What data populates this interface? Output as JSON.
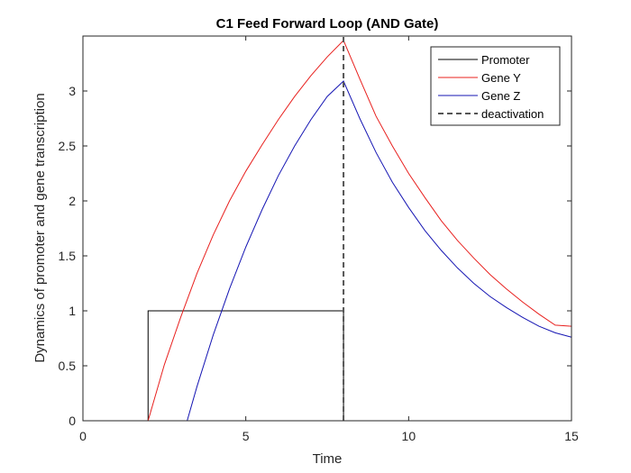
{
  "chart_data": {
    "type": "line",
    "title": "C1 Feed Forward Loop (AND Gate)",
    "xlabel": "Time",
    "ylabel": "Dynamics of promoter and gene transcription",
    "xlim": [
      0,
      15
    ],
    "ylim": [
      0,
      3.5
    ],
    "xticks": [
      0,
      5,
      10,
      15
    ],
    "xtick_labels": [
      "0",
      "5",
      "10",
      "15"
    ],
    "yticks": [
      0,
      0.5,
      1,
      1.5,
      2,
      2.5,
      3
    ],
    "ytick_labels": [
      "0",
      "0.5",
      "1",
      "1.5",
      "2",
      "2.5",
      "3"
    ],
    "grid": false,
    "legend_position": "top-right",
    "series": [
      {
        "name": "Promoter",
        "color": "#000000",
        "style": "solid",
        "x": [
          0,
          2,
          2,
          8,
          8,
          15
        ],
        "y": [
          0,
          0,
          1,
          1,
          0,
          0
        ]
      },
      {
        "name": "Gene Y",
        "color": "#e8201e",
        "style": "solid",
        "x": [
          0,
          2,
          2.5,
          3,
          3.5,
          4,
          4.5,
          5,
          5.5,
          6,
          6.5,
          7,
          7.5,
          8,
          8.5,
          9,
          9.5,
          10,
          10.5,
          11,
          11.5,
          12,
          12.5,
          13,
          13.5,
          14,
          14.5,
          15
        ],
        "y": [
          0,
          0,
          0.51,
          0.94,
          1.34,
          1.69,
          2.0,
          2.27,
          2.51,
          2.74,
          2.95,
          3.14,
          3.31,
          3.46,
          3.11,
          2.77,
          2.5,
          2.25,
          2.03,
          1.82,
          1.64,
          1.48,
          1.33,
          1.2,
          1.08,
          0.97,
          0.87,
          0.86
        ]
      },
      {
        "name": "Gene Z",
        "color": "#1515b3",
        "style": "solid",
        "x": [
          0,
          3.2,
          3.5,
          4,
          4.5,
          5,
          5.5,
          6,
          6.5,
          7,
          7.5,
          8,
          8.5,
          9,
          9.5,
          10,
          10.5,
          11,
          11.5,
          12,
          12.5,
          13,
          13.5,
          14,
          14.5,
          15
        ],
        "y": [
          0,
          0,
          0.31,
          0.78,
          1.2,
          1.58,
          1.92,
          2.23,
          2.5,
          2.74,
          2.95,
          3.09,
          2.75,
          2.44,
          2.17,
          1.94,
          1.73,
          1.55,
          1.39,
          1.25,
          1.13,
          1.03,
          0.94,
          0.86,
          0.8,
          0.76
        ]
      },
      {
        "name": "deactivation",
        "color": "#555555",
        "style": "dashed",
        "x": [
          8,
          8
        ],
        "y": [
          0,
          3.5
        ]
      }
    ]
  }
}
